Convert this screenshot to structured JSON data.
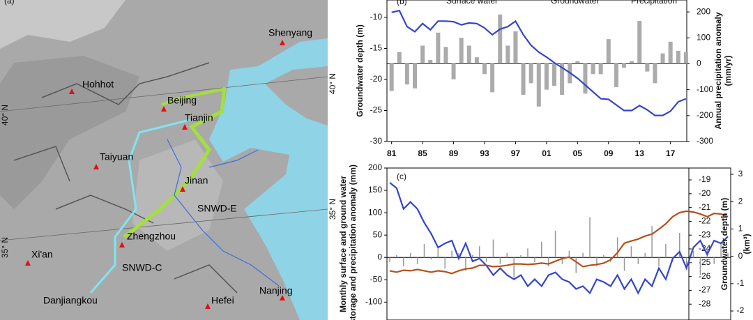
{
  "map": {
    "panel_label": "(a)",
    "places": [
      "Shenyang",
      "Hohhot",
      "Beijing",
      "Tianjin",
      "Taiyuan",
      "Jinan",
      "SNWD-E",
      "Zhengzhou",
      "Xi'an",
      "SNWD-C",
      "Nanjing",
      "Hefei",
      "Danjiangkou"
    ],
    "lat_labels": [
      "40° N",
      "35° N",
      "40° N",
      "35° N"
    ]
  },
  "chart_data": [
    {
      "type": "bar_line",
      "panel_label": "(b)",
      "legend": [
        "Surface water",
        "Groundwater",
        "Precipitation"
      ],
      "ylabel": [
        "Groundwater depth (m)"
      ],
      "y2label": [
        "Annual precipitation anomaly",
        "(mm/yr)"
      ],
      "x": [
        1981,
        1982,
        1983,
        1984,
        1985,
        1986,
        1987,
        1988,
        1989,
        1990,
        1991,
        1992,
        1993,
        1994,
        1995,
        1996,
        1997,
        1998,
        1999,
        2000,
        2001,
        2002,
        2003,
        2004,
        2005,
        2006,
        2007,
        2008,
        2009,
        2010,
        2011,
        2012,
        2013,
        2014,
        2015,
        2016,
        2017,
        2018,
        2019
      ],
      "xlim": [
        1980.4,
        2019.1
      ],
      "xticks": [
        {
          "value": 1981,
          "label": "81"
        },
        {
          "value": 1985,
          "label": "85"
        },
        {
          "value": 1989,
          "label": "89"
        },
        {
          "value": 1993,
          "label": "93"
        },
        {
          "value": 1997,
          "label": "97"
        },
        {
          "value": 2001,
          "label": "01"
        },
        {
          "value": 2005,
          "label": "05"
        },
        {
          "value": 2009,
          "label": "09"
        },
        {
          "value": 2013,
          "label": "13"
        },
        {
          "value": 2017,
          "label": "17"
        }
      ],
      "ylim": [
        -30,
        -7.2
      ],
      "yticks": [
        -30,
        -25,
        -20,
        -15,
        -10
      ],
      "y2lim": [
        -300,
        246
      ],
      "y2ticks": [
        -300,
        -200,
        -100,
        0,
        100,
        200
      ],
      "series": [
        {
          "type": "bar",
          "axis": "y2",
          "color": "#ababab",
          "values": [
            -105,
            45,
            -80,
            -95,
            70,
            15,
            120,
            65,
            -60,
            100,
            70,
            25,
            -40,
            -110,
            190,
            70,
            125,
            -120,
            -75,
            -165,
            -100,
            -85,
            -120,
            -75,
            10,
            -115,
            -40,
            -40,
            95,
            -90,
            -15,
            10,
            165,
            -30,
            -75,
            40,
            85,
            50,
            45
          ]
        },
        {
          "type": "line",
          "color": "#3344cc",
          "values": [
            -9.2,
            -8.9,
            -11.5,
            -12.3,
            -11,
            -12,
            -10.6,
            -10.6,
            -10.7,
            -11.2,
            -10.9,
            -11,
            -11.7,
            -12.8,
            -11.9,
            -11.5,
            -10.6,
            -12.8,
            -14.5,
            -15.6,
            -16.4,
            -17.3,
            -18.1,
            -18.9,
            -19.8,
            -20.9,
            -22,
            -23.1,
            -23.2,
            -24.1,
            -25,
            -25,
            -24.2,
            -24.9,
            -25.8,
            -25.8,
            -25.1,
            -23.6,
            -23.1
          ]
        }
      ]
    },
    {
      "type": "bar_line",
      "panel_label": "(c)",
      "ylabel": [
        "Monthly surface and ground water",
        "storage and precipitation anomaly (mm)"
      ],
      "y2label": [
        "Groundwater depth (m)"
      ],
      "y3label": [
        "(km³)"
      ],
      "ylim": [
        -140,
        200
      ],
      "yticks": [
        -100,
        -50,
        0,
        50,
        100,
        150,
        200
      ],
      "y2lim": [
        -29.15,
        -18.14
      ],
      "y2ticks": [
        -28,
        -27,
        -26,
        -25,
        -24,
        -23,
        -22,
        -21,
        -20,
        -19
      ],
      "y3lim": [
        -2.33,
        3.23
      ],
      "y3ticks": [
        -2,
        -1,
        0,
        1,
        2,
        3
      ],
      "series": [
        {
          "type": "bar",
          "color": "#999999",
          "values": [
            -10,
            5,
            -20,
            10,
            -15,
            30,
            -5,
            20,
            -25,
            15,
            10,
            -30,
            5,
            25,
            -10,
            40,
            -15,
            10,
            -45,
            5,
            20,
            -10,
            35,
            -20,
            60,
            -15,
            15,
            -35,
            10,
            90,
            -20,
            5,
            -10,
            45,
            -30,
            25,
            -15,
            10,
            70,
            -20,
            30,
            -10,
            55,
            -25,
            15,
            -40,
            20,
            -15,
            35,
            10
          ]
        },
        {
          "type": "line",
          "axis": "y2",
          "color": "#3344cc",
          "values": [
            -19.2,
            -19.6,
            -21.1,
            -20.6,
            -21.1,
            -22.1,
            -22.9,
            -23.9,
            -23.6,
            -23.4,
            -24.7,
            -23.6,
            -24.9,
            -24.7,
            -25.2,
            -25.9,
            -25.4,
            -25.9,
            -26.2,
            -25.9,
            -26.7,
            -26.2,
            -26.7,
            -25.9,
            -25.7,
            -26.2,
            -26.4,
            -26.9,
            -26.7,
            -27.2,
            -26.2,
            -26.4,
            -26.7,
            -25.9,
            -26.9,
            -26.2,
            -27.2,
            -26.2,
            -26.7,
            -25.4,
            -26.2,
            -24.7,
            -24.2,
            -25.4,
            -23.9,
            -23.4,
            -24.4,
            -23.4,
            -23.6,
            -23.1
          ]
        },
        {
          "type": "line",
          "axis": "y3",
          "color": "#b5501a",
          "values": [
            -0.53,
            -0.58,
            -0.51,
            -0.53,
            -0.48,
            -0.53,
            -0.58,
            -0.53,
            -0.56,
            -0.63,
            -0.53,
            -0.46,
            -0.43,
            -0.33,
            -0.33,
            -0.38,
            -0.36,
            -0.33,
            -0.28,
            -0.28,
            -0.3,
            -0.28,
            -0.25,
            -0.28,
            -0.18,
            -0.08,
            -0.03,
            -0.2,
            -0.38,
            -0.33,
            -0.3,
            -0.25,
            -0.13,
            0.13,
            0.48,
            0.56,
            0.63,
            0.74,
            0.81,
            0.99,
            1.19,
            1.45,
            1.6,
            1.65,
            1.62,
            1.55,
            1.45,
            1.57,
            1.55,
            1.45
          ]
        }
      ]
    }
  ]
}
